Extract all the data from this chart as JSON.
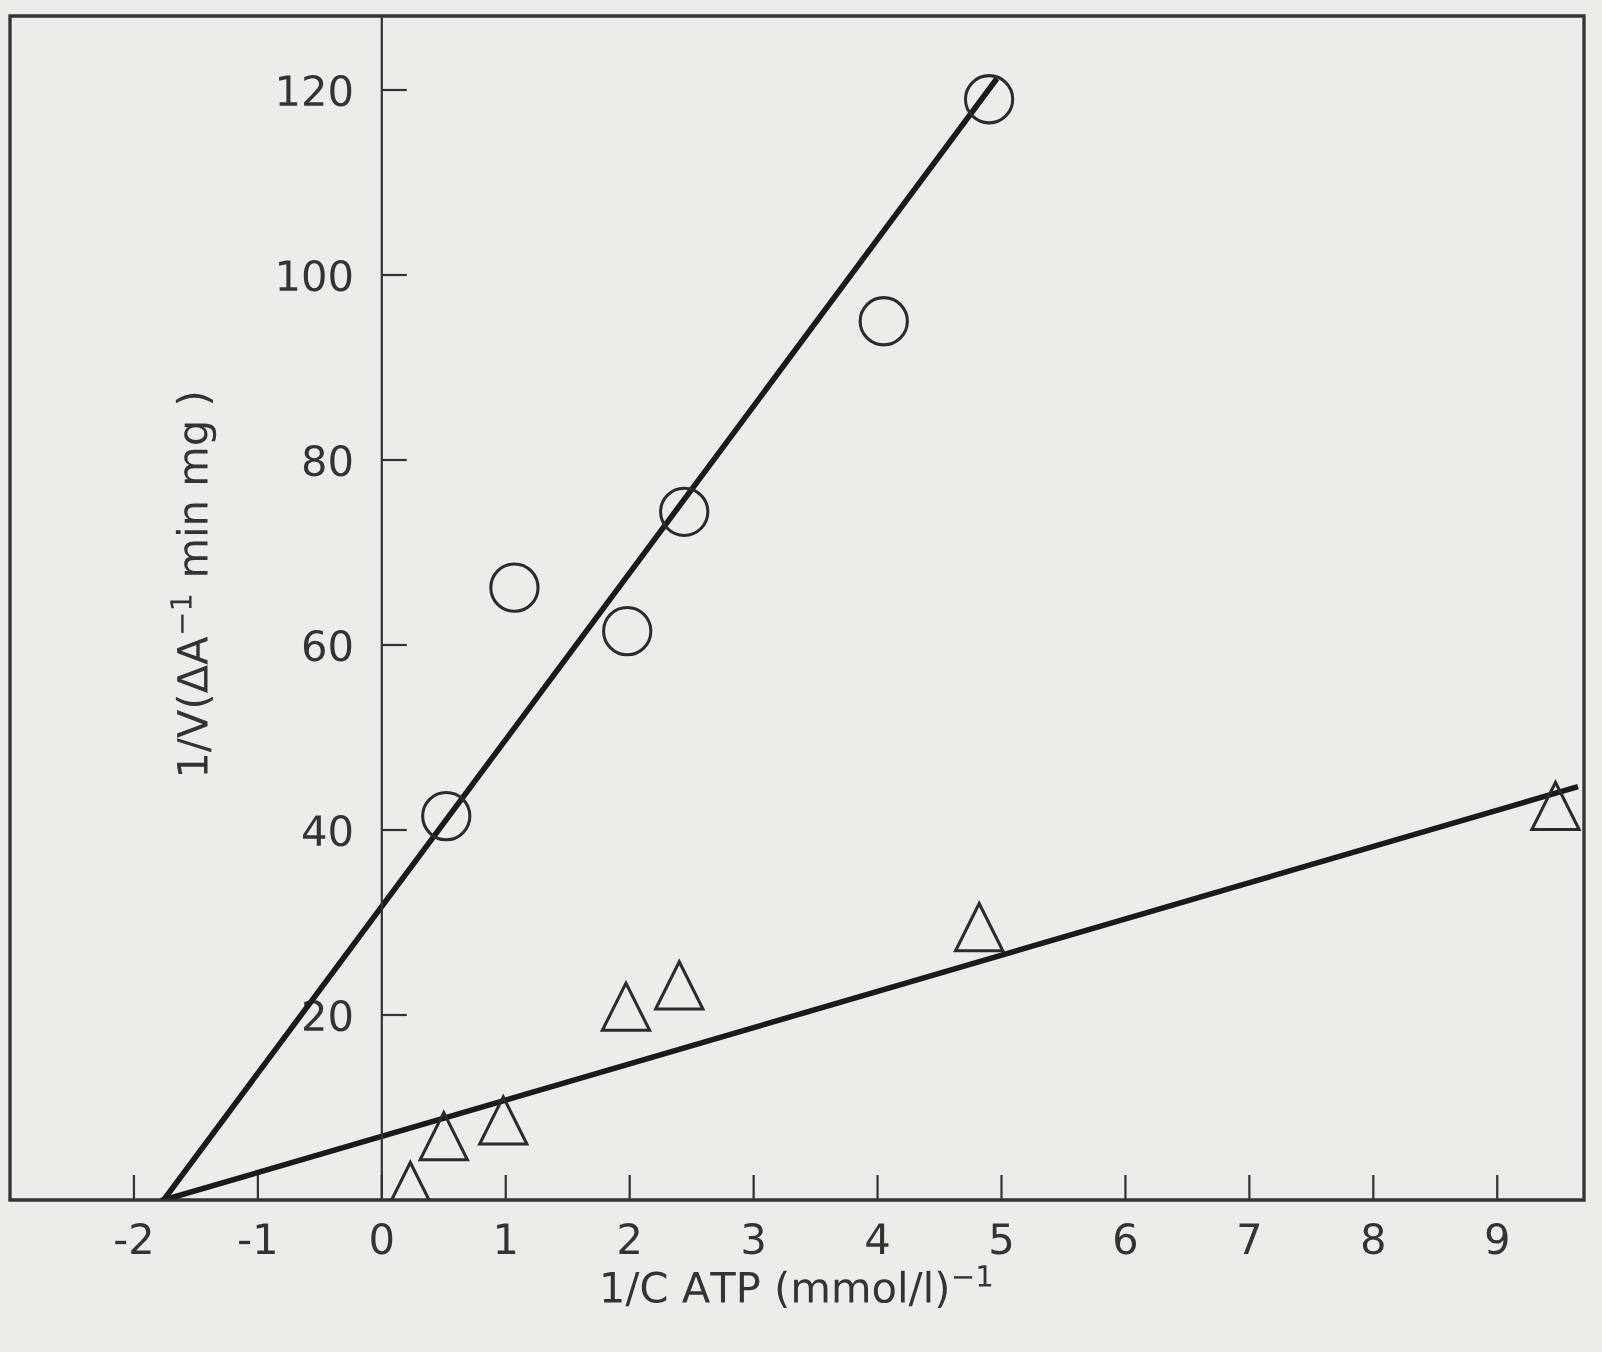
{
  "chart_data": {
    "type": "scatter",
    "xlabel": "1/C ATP (mmol/l)$^{−1}$",
    "ylabel": "1/V(ΔA$^{−1}$ min mg )",
    "xlim": [
      -3,
      9.7
    ],
    "ylim": [
      0,
      128
    ],
    "xticks": [
      -2,
      -1,
      0,
      1,
      2,
      3,
      4,
      5,
      6,
      7,
      8,
      9
    ],
    "yticks": [
      20,
      40,
      60,
      80,
      100,
      120
    ],
    "grid": false,
    "legend": false,
    "series": [
      {
        "marker": "circle",
        "color": "#2b2b2b",
        "x": [
          0.52,
          1.07,
          1.98,
          2.44,
          4.05,
          4.9
        ],
        "values": [
          41.5,
          66.2,
          61.5,
          74.4,
          95,
          119
        ]
      },
      {
        "marker": "triangle",
        "color": "#2b2b2b",
        "x": [
          0.23,
          0.5,
          0.98,
          1.97,
          2.4,
          4.82,
          9.47
        ],
        "values": [
          1.5,
          6.9,
          8.6,
          20.9,
          23.2,
          29.5,
          42.6
        ]
      },
      {
        "type": "line",
        "line_style": "solid",
        "color": "#1a1a1a",
        "x": [
          -1.76,
          4.95
        ],
        "values": [
          0,
          121
        ]
      },
      {
        "type": "line",
        "line_style": "solid",
        "color": "#1a1a1a",
        "x": [
          -1.76,
          9.63
        ],
        "values": [
          0,
          44.6
        ]
      }
    ]
  }
}
